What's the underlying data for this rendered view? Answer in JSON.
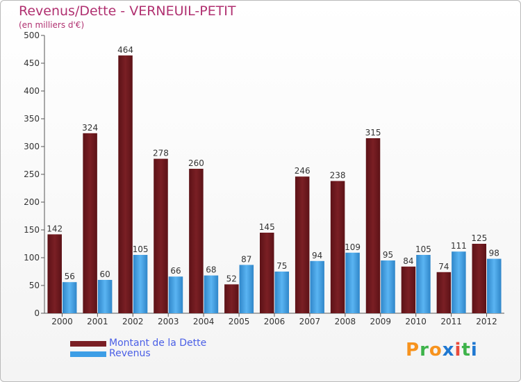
{
  "title": "Revenus/Dette - VERNEUIL-PETIT",
  "subtitle": "(en milliers d'€)",
  "colors": {
    "dette": "#7a1f24",
    "revenus": "#3d9ee6",
    "title": "#b03070",
    "legend_text": "#4a5fe6"
  },
  "chart_data": {
    "type": "bar",
    "categories": [
      "2000",
      "2001",
      "2002",
      "2003",
      "2004",
      "2005",
      "2006",
      "2007",
      "2008",
      "2009",
      "2010",
      "2011",
      "2012"
    ],
    "series": [
      {
        "name": "Montant de la Dette",
        "values": [
          142,
          324,
          464,
          278,
          260,
          52,
          145,
          246,
          238,
          315,
          84,
          74,
          125
        ]
      },
      {
        "name": "Revenus",
        "values": [
          56,
          60,
          105,
          66,
          68,
          87,
          75,
          94,
          109,
          95,
          105,
          111,
          98
        ]
      }
    ],
    "ylim": [
      0,
      500
    ],
    "yticks": [
      0,
      50,
      100,
      150,
      200,
      250,
      300,
      350,
      400,
      450,
      500
    ],
    "grid": false,
    "legend_position": "bottom-left"
  },
  "legend": [
    {
      "label": "Montant de la Dette"
    },
    {
      "label": "Revenus"
    }
  ],
  "logo": {
    "letters": [
      "P",
      "r",
      "o",
      "x",
      "i",
      "t",
      "i"
    ],
    "colors": [
      "#f7931e",
      "#3db34a",
      "#f7931e",
      "#1f78d1",
      "#e94b3c",
      "#3db34a",
      "#1f78d1"
    ]
  }
}
